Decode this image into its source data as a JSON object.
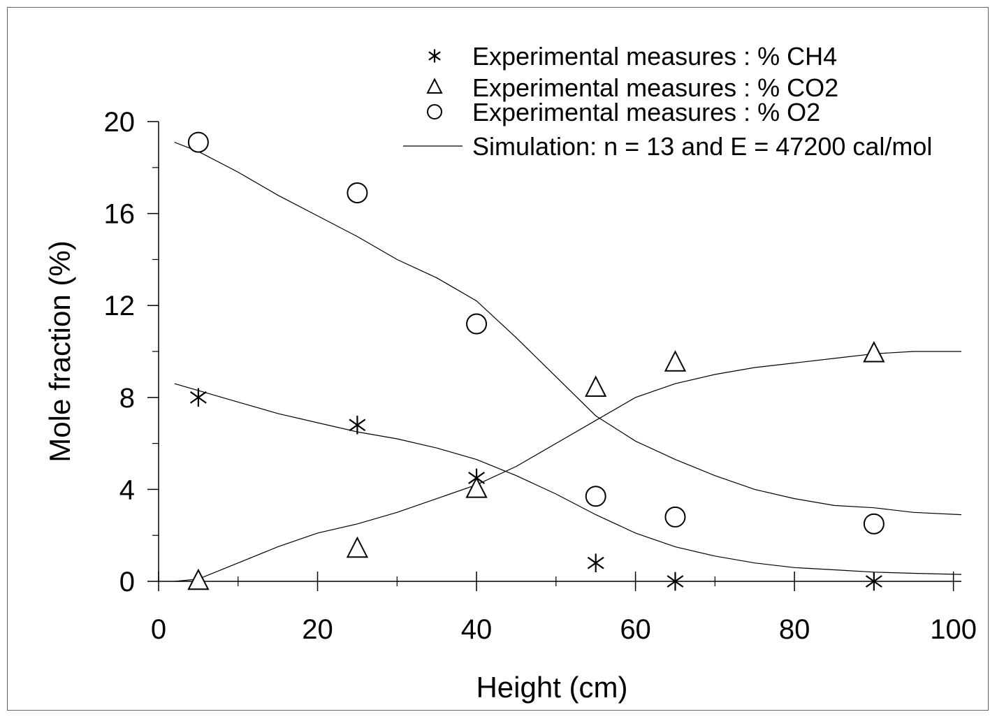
{
  "chart_data": {
    "type": "line",
    "title": "",
    "xlabel": "Height (cm)",
    "ylabel": "Mole fraction (%)",
    "xlim": [
      0,
      101
    ],
    "ylim": [
      0,
      20
    ],
    "xticks": [
      "0",
      "20",
      "40",
      "60",
      "80",
      "100"
    ],
    "yticks": [
      "0",
      "4",
      "8",
      "12",
      "16",
      "20"
    ],
    "grid": false,
    "legend_position": "top-right",
    "series": [
      {
        "name": "Experimental measures : % CH4",
        "kind": "scatter",
        "marker": "asterisk",
        "x": [
          5,
          25,
          40,
          55,
          65,
          90
        ],
        "y": [
          8.0,
          6.8,
          4.5,
          0.8,
          0.0,
          0.0
        ]
      },
      {
        "name": "Experimental measures : % CO2",
        "kind": "scatter",
        "marker": "triangle",
        "x": [
          5,
          25,
          40,
          55,
          65,
          90
        ],
        "y": [
          0.0,
          1.4,
          4.0,
          8.4,
          9.5,
          9.9
        ]
      },
      {
        "name": "Experimental measures : % O2",
        "kind": "scatter",
        "marker": "circle",
        "x": [
          5,
          25,
          40,
          55,
          65,
          90
        ],
        "y": [
          19.1,
          16.9,
          11.2,
          3.7,
          2.8,
          2.5
        ]
      },
      {
        "name": "Simulation: n = 13 and E = 47200 cal/mol",
        "kind": "line",
        "curves": [
          {
            "x": [
              2,
              5,
              10,
              15,
              20,
              25,
              30,
              35,
              40,
              45,
              50,
              55,
              60,
              65,
              70,
              75,
              80,
              85,
              90,
              95,
              101
            ],
            "y": [
              8.6,
              8.3,
              7.8,
              7.3,
              6.9,
              6.5,
              6.2,
              5.8,
              5.3,
              4.6,
              3.8,
              2.9,
              2.1,
              1.5,
              1.1,
              0.8,
              0.6,
              0.5,
              0.4,
              0.35,
              0.3
            ]
          },
          {
            "x": [
              2,
              5,
              10,
              15,
              20,
              25,
              30,
              35,
              40,
              45,
              50,
              55,
              60,
              65,
              70,
              75,
              80,
              85,
              90,
              95,
              101
            ],
            "y": [
              0.0,
              0.1,
              0.8,
              1.5,
              2.1,
              2.5,
              3.0,
              3.6,
              4.2,
              5.0,
              6.0,
              7.0,
              8.0,
              8.6,
              9.0,
              9.3,
              9.5,
              9.7,
              9.9,
              10.0,
              10.0
            ]
          },
          {
            "x": [
              2,
              5,
              10,
              15,
              20,
              25,
              30,
              35,
              40,
              45,
              50,
              55,
              60,
              65,
              70,
              75,
              80,
              85,
              90,
              95,
              101
            ],
            "y": [
              19.1,
              18.7,
              17.8,
              16.8,
              15.9,
              15.0,
              14.0,
              13.2,
              12.2,
              10.6,
              8.9,
              7.2,
              6.1,
              5.3,
              4.6,
              4.0,
              3.6,
              3.3,
              3.2,
              3.0,
              2.9
            ]
          }
        ]
      }
    ]
  }
}
